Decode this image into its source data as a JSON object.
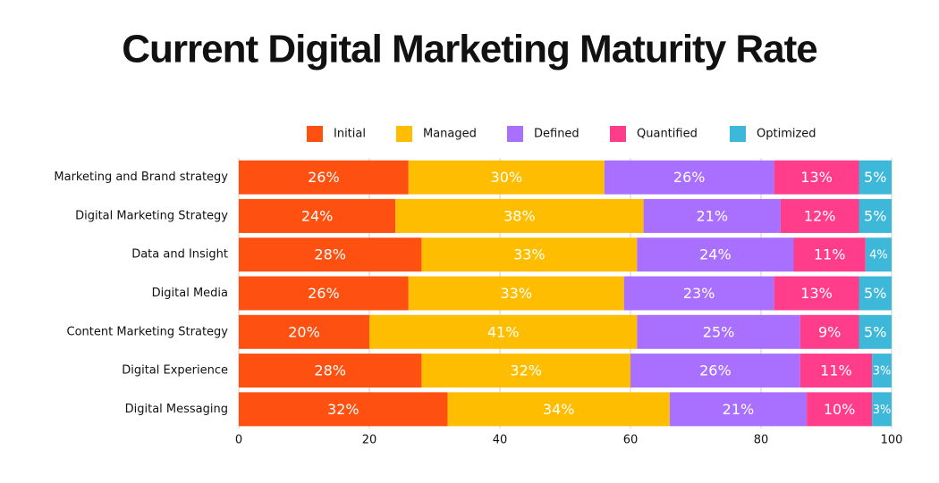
{
  "chart_data": {
    "type": "stacked-bar-horizontal",
    "title": "Current Digital Marketing Maturity Rate",
    "categories": [
      "Marketing and Brand strategy",
      "Digital Marketing Strategy",
      "Data and Insight",
      "Digital Media",
      "Content Marketing Strategy",
      "Digital Experience",
      "Digital Messaging"
    ],
    "series": [
      {
        "name": "Initial",
        "color": "#fe5010",
        "values": [
          26,
          24,
          28,
          26,
          20,
          28,
          32
        ],
        "value_labels": [
          "26%",
          "24%",
          "28%",
          "26%",
          "20%",
          "28%",
          "32%"
        ]
      },
      {
        "name": "Managed",
        "color": "#ffbd00",
        "values": [
          30,
          38,
          33,
          33,
          41,
          32,
          34
        ],
        "value_labels": [
          "30%",
          "38%",
          "33%",
          "33%",
          "41%",
          "32%",
          "34%"
        ]
      },
      {
        "name": "Defined",
        "color": "#a970ff",
        "values": [
          26,
          21,
          24,
          23,
          25,
          26,
          21
        ],
        "value_labels": [
          "26%",
          "21%",
          "24%",
          "23%",
          "25%",
          "26%",
          "21%"
        ]
      },
      {
        "name": "Quantified",
        "color": "#ff3d8b",
        "values": [
          13,
          12,
          11,
          13,
          9,
          11,
          10
        ],
        "value_labels": [
          "13%",
          "12%",
          "11%",
          "13%",
          "9%",
          "11%",
          "10%"
        ]
      },
      {
        "name": "Optimized",
        "color": "#3eb8d8",
        "values": [
          5,
          5,
          4,
          5,
          5,
          3,
          3
        ],
        "value_labels": [
          "5%",
          "5%",
          "4%",
          "5%",
          "5%",
          "3%",
          "3%"
        ]
      }
    ],
    "xlim": [
      0,
      100
    ],
    "xticks": [
      0,
      20,
      40,
      60,
      80,
      100
    ],
    "grid": true,
    "legend": "top"
  }
}
